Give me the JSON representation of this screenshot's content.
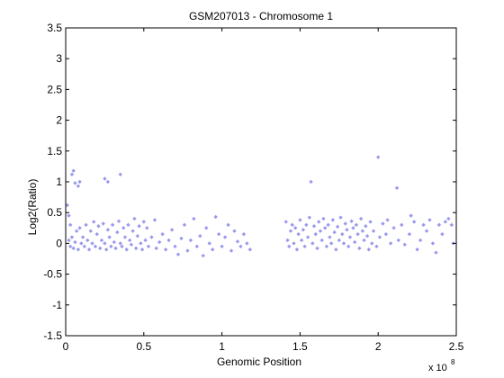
{
  "chart_data": {
    "type": "scatter",
    "title": "GSM207013 - Chromosome 1",
    "xlabel": "Genomic Position",
    "ylabel": "Log2(Ratio)",
    "x_multiplier": "x 10",
    "x_multiplier_exp": "8",
    "xlim": [
      0,
      2.5
    ],
    "ylim": [
      -1.5,
      3.5
    ],
    "x_ticks": [
      0,
      0.5,
      1,
      1.5,
      2,
      2.5
    ],
    "x_tick_labels": [
      "0",
      "0.5",
      "1",
      "1.5",
      "2",
      "2.5"
    ],
    "y_ticks": [
      -1.5,
      -1,
      -0.5,
      0,
      0.5,
      1,
      1.5,
      2,
      2.5,
      3,
      3.5
    ],
    "y_tick_labels": [
      "-1.5",
      "-1",
      "-0.5",
      "0",
      "0.5",
      "1",
      "1.5",
      "2",
      "2.5",
      "3",
      "3.5"
    ],
    "grid": false,
    "marker_color": "#9999ee",
    "axis_color": "#000000",
    "points": [
      [
        0.01,
        0.62
      ],
      [
        0.02,
        0.45
      ],
      [
        0.03,
        0.3
      ],
      [
        0.04,
        1.12
      ],
      [
        0.05,
        1.18
      ],
      [
        0.06,
        0.98
      ],
      [
        0.08,
        0.93
      ],
      [
        0.09,
        1.0
      ],
      [
        0.25,
        1.05
      ],
      [
        0.27,
        1.0
      ],
      [
        0.35,
        1.12
      ],
      [
        0.02,
        0.05
      ],
      [
        0.03,
        -0.05
      ],
      [
        0.04,
        0.1
      ],
      [
        0.05,
        -0.08
      ],
      [
        0.06,
        0.02
      ],
      [
        0.07,
        0.2
      ],
      [
        0.08,
        -0.1
      ],
      [
        0.09,
        0.25
      ],
      [
        0.1,
        0.0
      ],
      [
        0.11,
        0.1
      ],
      [
        0.12,
        -0.05
      ],
      [
        0.13,
        0.3
      ],
      [
        0.14,
        0.05
      ],
      [
        0.15,
        -0.1
      ],
      [
        0.16,
        0.2
      ],
      [
        0.17,
        0.0
      ],
      [
        0.18,
        0.35
      ],
      [
        0.19,
        -0.05
      ],
      [
        0.2,
        0.15
      ],
      [
        0.21,
        0.28
      ],
      [
        0.22,
        -0.08
      ],
      [
        0.23,
        0.05
      ],
      [
        0.24,
        0.32
      ],
      [
        0.25,
        0.0
      ],
      [
        0.26,
        -0.1
      ],
      [
        0.27,
        0.22
      ],
      [
        0.28,
        0.1
      ],
      [
        0.29,
        -0.05
      ],
      [
        0.3,
        0.3
      ],
      [
        0.31,
        0.02
      ],
      [
        0.32,
        -0.08
      ],
      [
        0.33,
        0.18
      ],
      [
        0.34,
        0.36
      ],
      [
        0.35,
        0.0
      ],
      [
        0.36,
        -0.05
      ],
      [
        0.37,
        0.25
      ],
      [
        0.38,
        0.1
      ],
      [
        0.39,
        -0.1
      ],
      [
        0.4,
        0.3
      ],
      [
        0.41,
        0.05
      ],
      [
        0.42,
        -0.02
      ],
      [
        0.43,
        0.2
      ],
      [
        0.44,
        0.4
      ],
      [
        0.45,
        -0.08
      ],
      [
        0.46,
        0.12
      ],
      [
        0.47,
        0.28
      ],
      [
        0.48,
        0.0
      ],
      [
        0.49,
        -0.1
      ],
      [
        0.5,
        0.35
      ],
      [
        0.51,
        0.05
      ],
      [
        0.52,
        0.25
      ],
      [
        0.53,
        -0.05
      ],
      [
        0.55,
        0.1
      ],
      [
        0.57,
        0.38
      ],
      [
        0.58,
        -0.08
      ],
      [
        0.6,
        0.02
      ],
      [
        0.62,
        0.15
      ],
      [
        0.64,
        -0.1
      ],
      [
        0.66,
        0.05
      ],
      [
        0.68,
        0.22
      ],
      [
        0.7,
        -0.05
      ],
      [
        0.72,
        -0.18
      ],
      [
        0.74,
        0.08
      ],
      [
        0.76,
        0.3
      ],
      [
        0.78,
        -0.12
      ],
      [
        0.8,
        0.05
      ],
      [
        0.82,
        0.4
      ],
      [
        0.84,
        -0.05
      ],
      [
        0.86,
        0.12
      ],
      [
        0.88,
        -0.2
      ],
      [
        0.9,
        0.25
      ],
      [
        0.92,
        0.0
      ],
      [
        0.94,
        -0.1
      ],
      [
        0.96,
        0.43
      ],
      [
        0.98,
        0.15
      ],
      [
        1.0,
        -0.05
      ],
      [
        1.02,
        0.1
      ],
      [
        1.04,
        0.3
      ],
      [
        1.06,
        -0.12
      ],
      [
        1.08,
        0.2
      ],
      [
        1.1,
        0.03
      ],
      [
        1.12,
        -0.05
      ],
      [
        1.14,
        0.15
      ],
      [
        1.16,
        0.0
      ],
      [
        1.18,
        -0.1
      ],
      [
        1.41,
        0.35
      ],
      [
        1.42,
        0.05
      ],
      [
        1.43,
        -0.05
      ],
      [
        1.44,
        0.2
      ],
      [
        1.45,
        0.3
      ],
      [
        1.46,
        0.0
      ],
      [
        1.47,
        0.25
      ],
      [
        1.48,
        -0.1
      ],
      [
        1.49,
        0.15
      ],
      [
        1.5,
        0.38
      ],
      [
        1.51,
        0.05
      ],
      [
        1.52,
        0.22
      ],
      [
        1.53,
        -0.05
      ],
      [
        1.54,
        0.3
      ],
      [
        1.55,
        0.1
      ],
      [
        1.56,
        0.42
      ],
      [
        1.57,
        1.0
      ],
      [
        1.58,
        0.0
      ],
      [
        1.59,
        0.28
      ],
      [
        1.6,
        0.15
      ],
      [
        1.61,
        -0.08
      ],
      [
        1.62,
        0.35
      ],
      [
        1.63,
        0.2
      ],
      [
        1.64,
        0.05
      ],
      [
        1.65,
        0.4
      ],
      [
        1.66,
        0.25
      ],
      [
        1.67,
        -0.05
      ],
      [
        1.68,
        0.3
      ],
      [
        1.69,
        0.1
      ],
      [
        1.7,
        0.0
      ],
      [
        1.71,
        0.38
      ],
      [
        1.72,
        0.18
      ],
      [
        1.73,
        -0.1
      ],
      [
        1.74,
        0.27
      ],
      [
        1.75,
        0.05
      ],
      [
        1.76,
        0.42
      ],
      [
        1.77,
        0.15
      ],
      [
        1.78,
        0.0
      ],
      [
        1.79,
        0.32
      ],
      [
        1.8,
        0.22
      ],
      [
        1.81,
        -0.05
      ],
      [
        1.82,
        0.1
      ],
      [
        1.83,
        0.36
      ],
      [
        1.84,
        0.25
      ],
      [
        1.85,
        0.02
      ],
      [
        1.86,
        0.3
      ],
      [
        1.87,
        0.15
      ],
      [
        1.88,
        -0.08
      ],
      [
        1.89,
        0.4
      ],
      [
        1.9,
        0.2
      ],
      [
        1.91,
        0.05
      ],
      [
        1.92,
        0.28
      ],
      [
        1.93,
        0.12
      ],
      [
        1.94,
        -0.1
      ],
      [
        1.95,
        0.35
      ],
      [
        1.96,
        0.0
      ],
      [
        1.97,
        0.2
      ],
      [
        1.99,
        -0.05
      ],
      [
        2.0,
        1.4
      ],
      [
        2.01,
        0.1
      ],
      [
        2.03,
        0.32
      ],
      [
        2.05,
        0.15
      ],
      [
        2.06,
        0.38
      ],
      [
        2.08,
        0.0
      ],
      [
        2.1,
        0.25
      ],
      [
        2.12,
        0.9
      ],
      [
        2.13,
        0.05
      ],
      [
        2.15,
        0.3
      ],
      [
        2.17,
        -0.02
      ],
      [
        2.2,
        0.15
      ],
      [
        2.21,
        0.45
      ],
      [
        2.23,
        0.35
      ],
      [
        2.25,
        -0.1
      ],
      [
        2.27,
        0.05
      ],
      [
        2.29,
        0.3
      ],
      [
        2.31,
        0.2
      ],
      [
        2.33,
        0.38
      ],
      [
        2.35,
        0.0
      ],
      [
        2.37,
        -0.15
      ],
      [
        2.39,
        0.3
      ],
      [
        2.41,
        0.15
      ],
      [
        2.43,
        0.35
      ],
      [
        2.45,
        0.4
      ],
      [
        2.47,
        0.3
      ],
      [
        2.48,
        0.0
      ]
    ]
  }
}
